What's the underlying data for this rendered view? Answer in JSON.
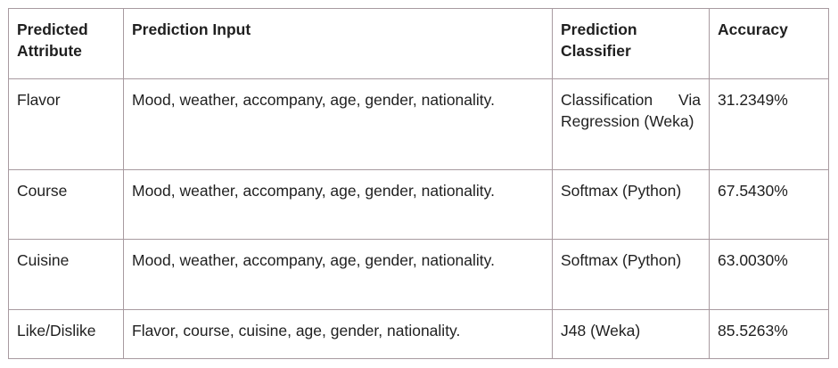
{
  "table": {
    "headers": {
      "attribute": "Predicted Attribute",
      "input": "Prediction Input",
      "classifier": "Prediction Classifier",
      "accuracy": "Accuracy"
    },
    "rows": [
      {
        "attribute": "Flavor",
        "input": "Mood, weather, accompany, age, gender, nationality.",
        "classifier": "Classification Via Regression (Weka)",
        "accuracy": "31.2349%"
      },
      {
        "attribute": "Course",
        "input": "Mood, weather, accompany, age, gender, nationality.",
        "classifier": "Softmax (Python)",
        "accuracy": "67.5430%"
      },
      {
        "attribute": "Cuisine",
        "input": "Mood, weather, accompany, age, gender, nationality.",
        "classifier": "Softmax (Python)",
        "accuracy": "63.0030%"
      },
      {
        "attribute": "Like/Dislike",
        "input": "Flavor, course, cuisine, age, gender, nationality.",
        "classifier": "J48 (Weka)",
        "accuracy": "85.5263%"
      }
    ]
  }
}
